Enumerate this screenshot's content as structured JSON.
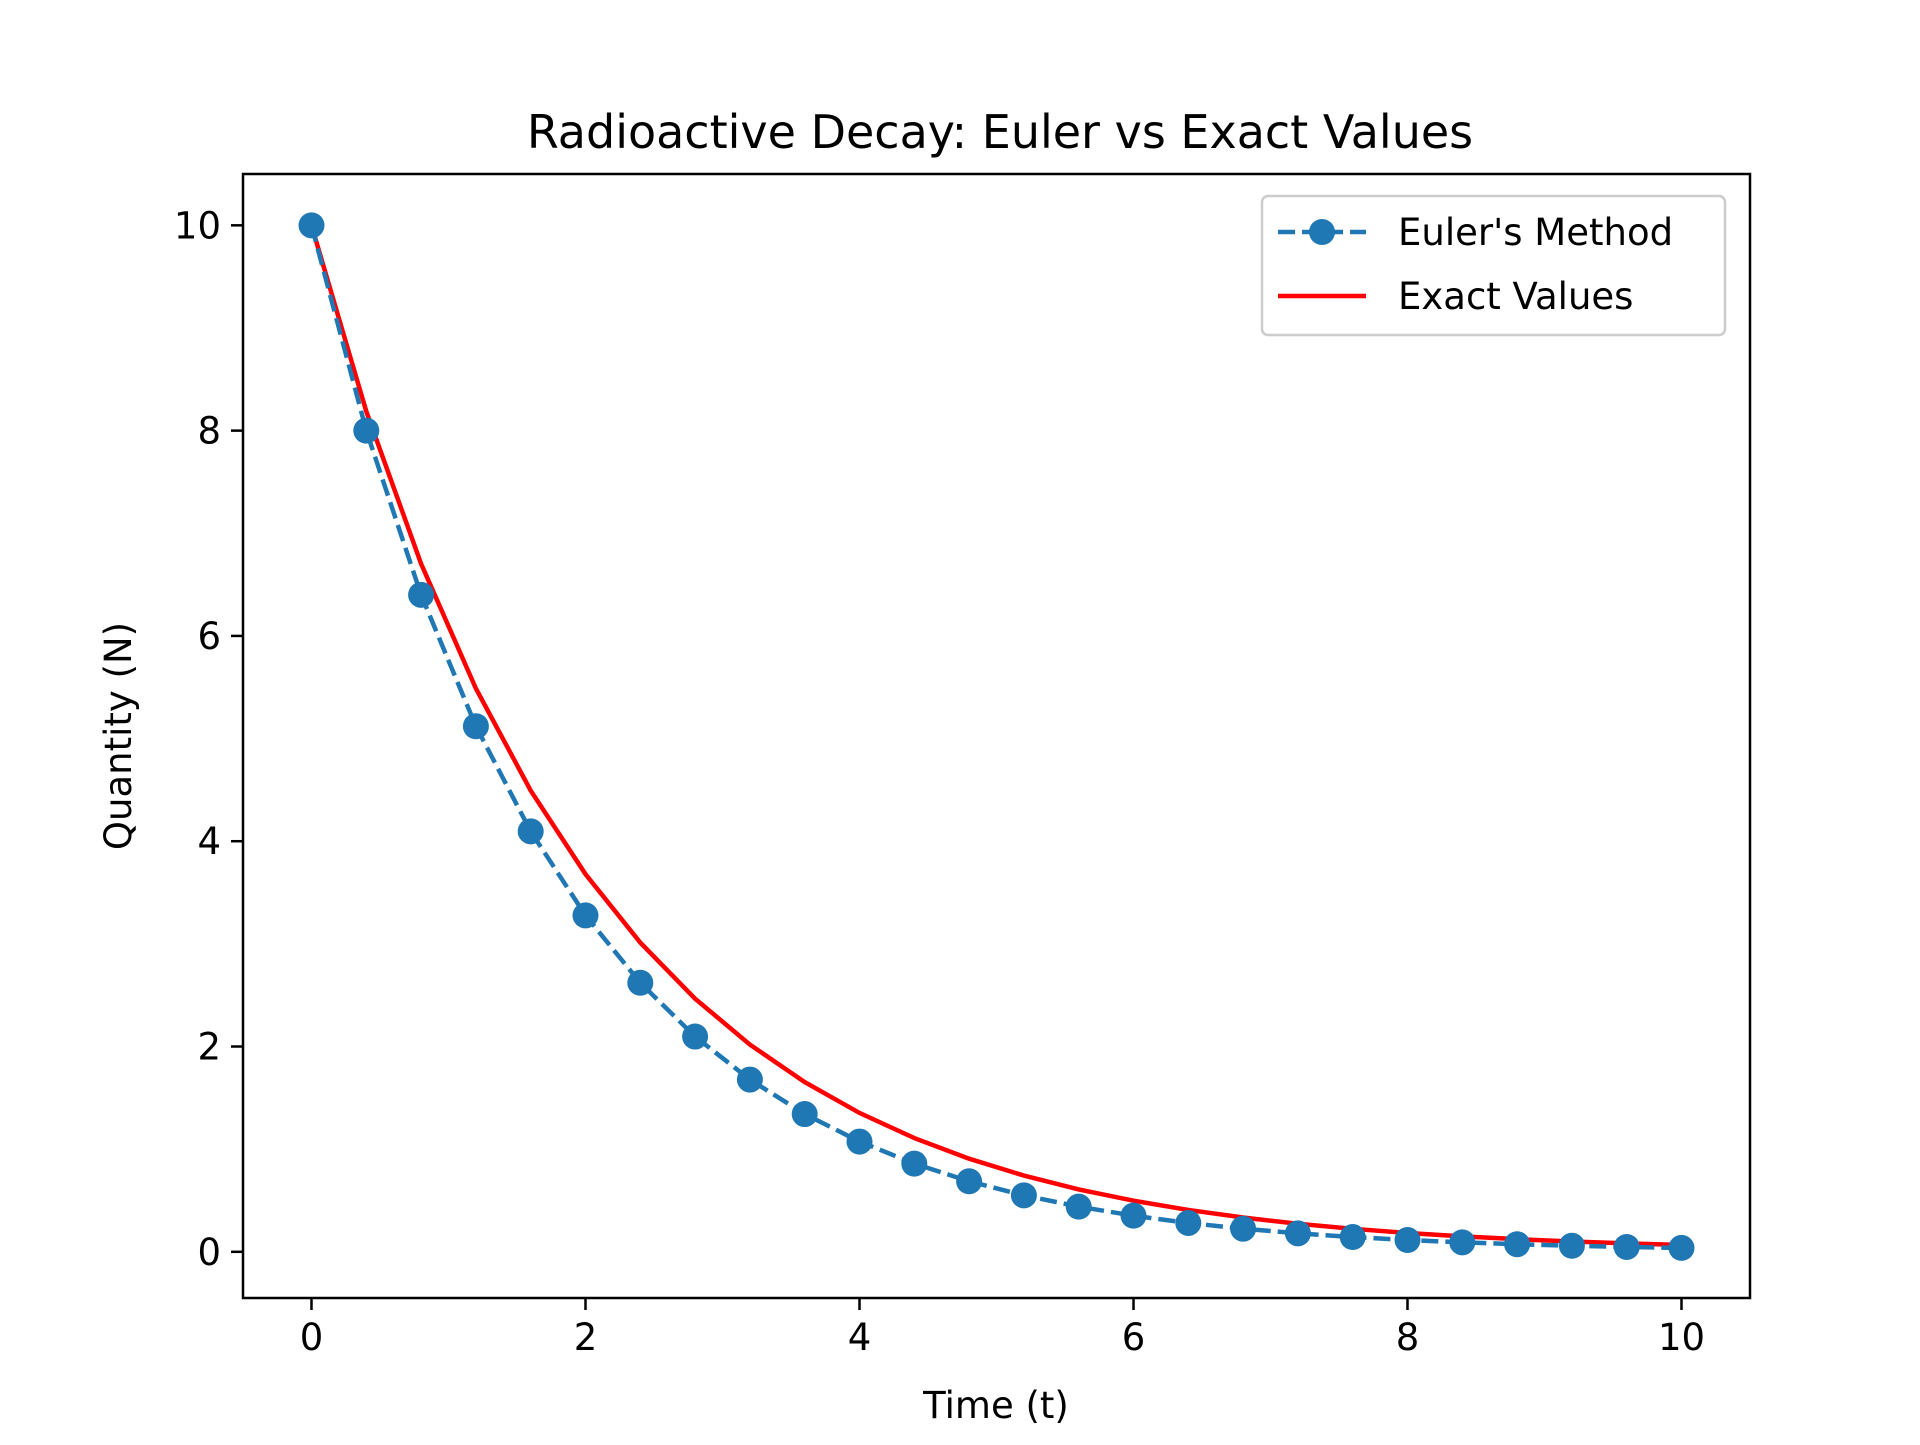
{
  "chart_data": {
    "type": "line",
    "title": "Radioactive Decay: Euler vs Exact Values",
    "xlabel": "Time (t)",
    "ylabel": "Quantity (N)",
    "xlim": [
      -0.5,
      10.5
    ],
    "ylim": [
      -0.45,
      10.5
    ],
    "xticks": [
      0,
      2,
      4,
      6,
      8,
      10
    ],
    "yticks": [
      0,
      2,
      4,
      6,
      8,
      10
    ],
    "grid": false,
    "legend_position": "top-right",
    "series": [
      {
        "name": "Euler's Method",
        "style": "dashed-with-circle-markers",
        "color": "#1f77b4",
        "x": [
          0,
          0.4,
          0.8,
          1.2,
          1.6,
          2.0,
          2.4,
          2.8,
          3.2,
          3.6,
          4.0,
          4.4,
          4.8,
          5.2,
          5.6,
          6.0,
          6.4,
          6.8,
          7.2,
          7.6,
          8.0,
          8.4,
          8.8,
          9.2,
          9.6,
          10.0
        ],
        "y": [
          10.0,
          8.0,
          6.4,
          5.12,
          4.096,
          3.277,
          2.621,
          2.097,
          1.678,
          1.342,
          1.074,
          0.859,
          0.687,
          0.55,
          0.44,
          0.352,
          0.281,
          0.225,
          0.18,
          0.144,
          0.115,
          0.092,
          0.074,
          0.059,
          0.047,
          0.038
        ]
      },
      {
        "name": "Exact Values",
        "style": "solid",
        "color": "#ff0000",
        "x": [
          0,
          0.4,
          0.8,
          1.2,
          1.6,
          2.0,
          2.4,
          2.8,
          3.2,
          3.6,
          4.0,
          4.4,
          4.8,
          5.2,
          5.6,
          6.0,
          6.4,
          6.8,
          7.2,
          7.6,
          8.0,
          8.4,
          8.8,
          9.2,
          9.6,
          10.0
        ],
        "y": [
          10.0,
          8.187,
          6.703,
          5.488,
          4.493,
          3.679,
          3.012,
          2.466,
          2.019,
          1.653,
          1.353,
          1.108,
          0.907,
          0.743,
          0.608,
          0.498,
          0.408,
          0.334,
          0.273,
          0.224,
          0.183,
          0.15,
          0.123,
          0.101,
          0.082,
          0.067
        ]
      }
    ]
  }
}
